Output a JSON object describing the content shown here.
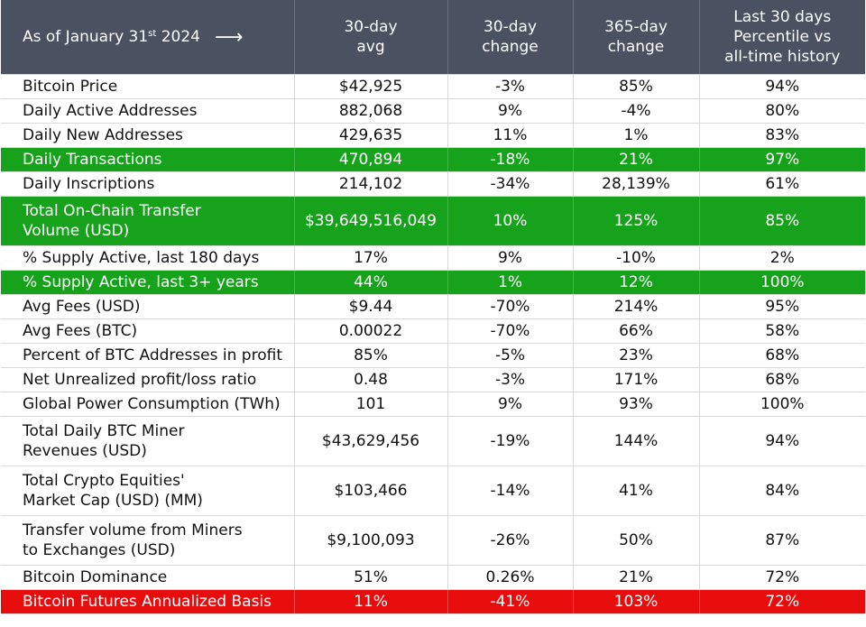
{
  "header": {
    "as_of_prefix": "As of January 31",
    "as_of_sup": "st",
    "as_of_year": "2024",
    "arrow": "⟶",
    "col_30day_avg": [
      "30-day",
      "avg"
    ],
    "col_30day_change": [
      "30-day",
      "change"
    ],
    "col_365day_change": [
      "365-day",
      "change"
    ],
    "col_percentile": [
      "Last 30 days",
      "Percentile vs",
      "all-time history"
    ]
  },
  "highlight_colors": {
    "green": "#16a21b",
    "red": "#e70d0d",
    "header": "#4a5160"
  },
  "rows": [
    {
      "label": [
        "Bitcoin Price"
      ],
      "avg": "$42,925",
      "chg30": "-3%",
      "chg365": "85%",
      "pct": "94%",
      "highlight": "none"
    },
    {
      "label": [
        "Daily Active Addresses"
      ],
      "avg": "882,068",
      "chg30": "9%",
      "chg365": "-4%",
      "pct": "80%",
      "highlight": "none"
    },
    {
      "label": [
        "Daily New Addresses"
      ],
      "avg": "429,635",
      "chg30": "11%",
      "chg365": "1%",
      "pct": "83%",
      "highlight": "none"
    },
    {
      "label": [
        "Daily Transactions"
      ],
      "avg": "470,894",
      "chg30": "-18%",
      "chg365": "21%",
      "pct": "97%",
      "highlight": "green"
    },
    {
      "label": [
        "Daily Inscriptions"
      ],
      "avg": "214,102",
      "chg30": "-34%",
      "chg365": "28,139%",
      "pct": "61%",
      "highlight": "none"
    },
    {
      "label": [
        "Total On-Chain Transfer",
        "Volume (USD)"
      ],
      "avg": "$39,649,516,049",
      "chg30": "10%",
      "chg365": "125%",
      "pct": "85%",
      "highlight": "green"
    },
    {
      "label": [
        "% Supply Active, last 180 days"
      ],
      "avg": "17%",
      "chg30": "9%",
      "chg365": "-10%",
      "pct": "2%",
      "highlight": "none"
    },
    {
      "label": [
        "% Supply Active, last 3+ years"
      ],
      "avg": "44%",
      "chg30": "1%",
      "chg365": "12%",
      "pct": "100%",
      "highlight": "green"
    },
    {
      "label": [
        "Avg Fees (USD)"
      ],
      "avg": "$9.44",
      "chg30": "-70%",
      "chg365": "214%",
      "pct": "95%",
      "highlight": "none"
    },
    {
      "label": [
        "Avg Fees (BTC)"
      ],
      "avg": "0.00022",
      "chg30": "-70%",
      "chg365": "66%",
      "pct": "58%",
      "highlight": "none"
    },
    {
      "label": [
        "Percent of BTC Addresses in profit"
      ],
      "avg": "85%",
      "chg30": "-5%",
      "chg365": "23%",
      "pct": "68%",
      "highlight": "none"
    },
    {
      "label": [
        "Net Unrealized profit/loss ratio"
      ],
      "avg": "0.48",
      "chg30": "-3%",
      "chg365": "171%",
      "pct": "68%",
      "highlight": "none"
    },
    {
      "label": [
        "Global Power Consumption (TWh)"
      ],
      "avg": "101",
      "chg30": "9%",
      "chg365": "93%",
      "pct": "100%",
      "highlight": "none"
    },
    {
      "label": [
        "Total Daily BTC Miner",
        "Revenues (USD)"
      ],
      "avg": "$43,629,456",
      "chg30": "-19%",
      "chg365": "144%",
      "pct": "94%",
      "highlight": "none"
    },
    {
      "label": [
        "Total Crypto Equities'",
        "Market Cap (USD) (MM)"
      ],
      "avg": "$103,466",
      "chg30": "-14%",
      "chg365": "41%",
      "pct": "84%",
      "highlight": "none"
    },
    {
      "label": [
        "Transfer volume from Miners",
        "to Exchanges (USD)"
      ],
      "avg": "$9,100,093",
      "chg30": "-26%",
      "chg365": "50%",
      "pct": "87%",
      "highlight": "none"
    },
    {
      "label": [
        "Bitcoin Dominance"
      ],
      "avg": "51%",
      "chg30": "0.26%",
      "chg365": "21%",
      "pct": "72%",
      "highlight": "none"
    },
    {
      "label": [
        "Bitcoin Futures Annualized Basis"
      ],
      "avg": "11%",
      "chg30": "-41%",
      "chg365": "103%",
      "pct": "72%",
      "highlight": "red"
    }
  ]
}
